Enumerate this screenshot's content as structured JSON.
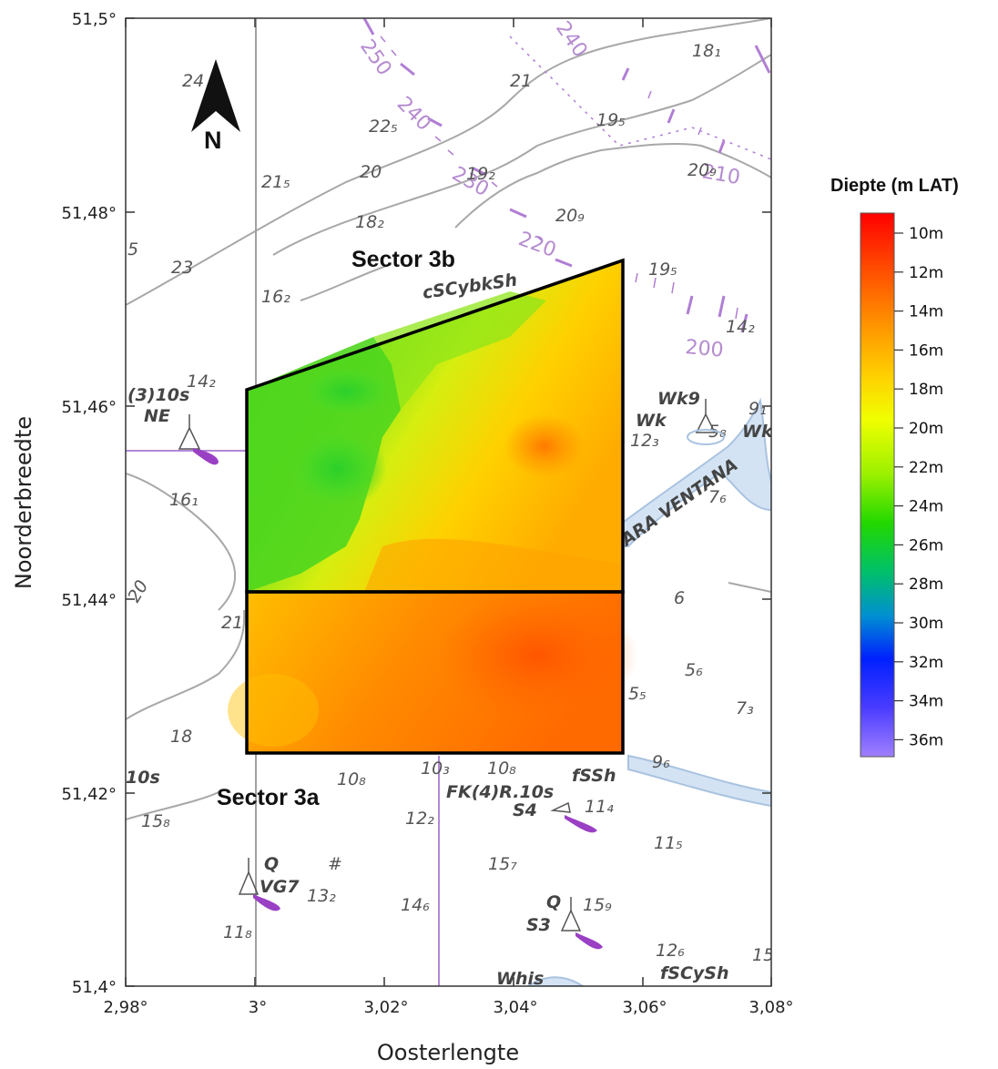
{
  "map": {
    "x_axis": {
      "title": "Oosterlengte",
      "ticks": [
        "2,98°",
        "3°",
        "3,02°",
        "3,04°",
        "3,06°",
        "3,08°"
      ]
    },
    "y_axis": {
      "title": "Noorderbreedte",
      "ticks": [
        "51,5°",
        "51,48°",
        "51,46°",
        "51,44°",
        "51,42°",
        "51,4°"
      ]
    },
    "north_arrow": "N",
    "sectors": {
      "sector_3b": "Sector 3b",
      "sector_3a": "Sector 3a"
    },
    "chart_labels": {
      "depth_24": "24",
      "depth_21_top": "21",
      "depth_18_1": "18₁",
      "depth_22_5": "22₅",
      "depth_19_5": "19₅",
      "depth_20": "20",
      "depth_21_5": "21₅",
      "depth_19_2": "19₂",
      "depth_20_9": "20₉",
      "depth_18_2": "18₂",
      "depth_20_9b": "20₉",
      "depth_5": "5",
      "depth_23": "23",
      "depth_16_2": "16₂",
      "depth_19_5b": "19₅",
      "depth_14_2": "14₂",
      "depth_14_2b": "14₂",
      "depth_16_1": "16₁",
      "depth_12_3": "12₃",
      "depth_7_6": "7₆",
      "depth_9_1": "9₁",
      "depth_5_8": "5₈",
      "depth_6": "6",
      "depth_5_6": "5₆",
      "depth_5_5": "5₅",
      "depth_7_3": "7₃",
      "depth_21_b": "21",
      "depth_20_b": "20",
      "depth_18": "18",
      "depth_10_8": "10₈",
      "depth_10_3": "10₃",
      "depth_10_8b": "10₈",
      "depth_9_6": "9₆",
      "depth_15_8": "15₈",
      "depth_12_2": "12₂",
      "depth_11_4": "11₄",
      "depth_11_5": "11₅",
      "depth_15_7": "15₇",
      "depth_13_2": "13₂",
      "depth_14_6": "14₆",
      "depth_15_9": "15₉",
      "depth_11_8": "11₈",
      "depth_12_6": "12₆",
      "depth_15": "15",
      "light_ne_1": "(3)10s",
      "light_ne_2": "NE",
      "seabed_1": "cSCybkSh",
      "wreck_1": "Wk9",
      "wreck_2": "Wk",
      "wreck_3": "Wk",
      "wreck_name": "ARA VENTANA",
      "light_10s": "10s",
      "buoy_fk": "FK(4)R.10s",
      "seabed_2": "fSSh",
      "buoy_s4": "S4",
      "buoy_q1": "Q",
      "buoy_vg7": "VG7",
      "buoy_q2": "Q",
      "buoy_s3": "S3",
      "whis": "Whis",
      "seabed_3": "fSCySh"
    },
    "bearing_labels": {
      "b250": "250",
      "b240": "240",
      "b240b": "240",
      "b230": "230",
      "b220": "220",
      "b210": "210",
      "b200": "200"
    },
    "legend": {
      "title": "Diepte (m LAT)",
      "labels": [
        "10m",
        "12m",
        "14m",
        "16m",
        "18m",
        "20m",
        "22m",
        "24m",
        "26m",
        "28m",
        "30m",
        "32m",
        "34m",
        "36m"
      ],
      "colors": [
        "#ff1a00",
        "#ff5a00",
        "#ff8a00",
        "#ffb400",
        "#ffe000",
        "#e6f500",
        "#a8ef00",
        "#55e000",
        "#00c850",
        "#00b4b4",
        "#0064ff",
        "#1a1aff",
        "#6a4cff",
        "#9a7cff"
      ]
    },
    "colors": {
      "chart_line": "#9a9a9a",
      "magenta": "#a35fcf",
      "deep_water": "#cfe0f2"
    }
  }
}
